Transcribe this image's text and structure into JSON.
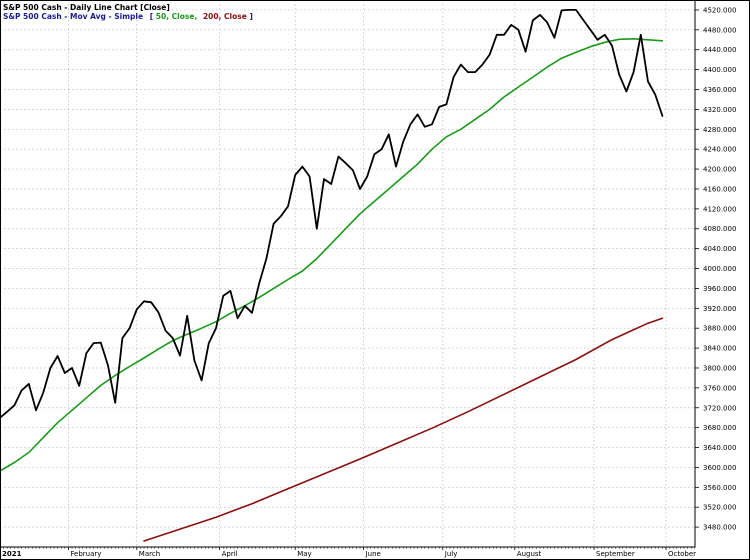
{
  "chart_data": {
    "type": "line",
    "title": "S&P 500 Cash - Daily Line Chart [Close]",
    "subtitle": {
      "prefix": "S&P 500 Cash - Mov Avg - Simple",
      "params_open": "[",
      "param_50": "50, Close,",
      "param_200": "200, Close",
      "params_close": "]"
    },
    "colors": {
      "price": "#000000",
      "ma50": "#1a9a1a",
      "ma200": "#8b0f0f",
      "title": "#000000",
      "subtitle": "#1b1b8f",
      "grid": "#b8b8b8",
      "frame": "#000000"
    },
    "ylim": [
      3440,
      4540
    ],
    "y_ticks": [
      "3480.000",
      "3520.000",
      "3560.000",
      "3600.000",
      "3640.000",
      "3680.000",
      "3720.000",
      "3760.000",
      "3800.000",
      "3840.000",
      "3880.000",
      "3920.000",
      "3960.000",
      "4000.000",
      "4040.000",
      "4080.000",
      "4120.000",
      "4160.000",
      "4200.000",
      "4240.000",
      "4280.000",
      "4320.000",
      "4360.000",
      "4400.000",
      "4440.000",
      "4480.000",
      "4520.000"
    ],
    "x_month_labels": [
      "2021",
      "February",
      "March",
      "April",
      "May",
      "June",
      "July",
      "August",
      "September",
      "October"
    ],
    "x_month_starts": [
      0,
      19,
      38,
      61,
      82,
      101,
      123,
      143,
      165,
      185
    ],
    "x_total_days": 200,
    "series": [
      {
        "name": "S&P 500 Cash",
        "color_key": "price",
        "x": [
          0,
          2,
          4,
          6,
          8,
          10,
          12,
          14,
          16,
          18,
          20,
          22,
          24,
          26,
          28,
          30,
          32,
          34,
          36,
          38,
          40,
          42,
          44,
          46,
          48,
          50,
          52,
          54,
          56,
          58,
          60,
          62,
          64,
          66,
          68,
          70,
          72,
          74,
          76,
          78,
          80,
          82,
          84,
          86,
          88,
          90,
          92,
          94,
          96,
          98,
          100,
          102,
          104,
          106,
          108,
          110,
          112,
          114,
          116,
          118,
          120,
          122,
          124,
          126,
          128,
          130,
          132,
          134,
          136,
          138,
          140,
          142,
          144,
          146,
          148,
          150,
          152,
          154,
          156,
          158,
          160,
          162,
          164,
          166,
          168,
          170,
          172,
          174,
          176,
          178,
          180,
          182,
          184
        ],
        "values": [
          3700,
          3712,
          3725,
          3755,
          3768,
          3715,
          3750,
          3800,
          3824,
          3790,
          3800,
          3764,
          3830,
          3850,
          3851,
          3805,
          3730,
          3860,
          3880,
          3918,
          3934,
          3932,
          3912,
          3875,
          3860,
          3825,
          3905,
          3815,
          3775,
          3850,
          3880,
          3945,
          3955,
          3900,
          3925,
          3911,
          3970,
          4020,
          4090,
          4105,
          4125,
          4188,
          4205,
          4185,
          4080,
          4180,
          4170,
          4225,
          4212,
          4198,
          4160,
          4185,
          4230,
          4240,
          4270,
          4205,
          4255,
          4290,
          4310,
          4285,
          4290,
          4325,
          4330,
          4385,
          4410,
          4395,
          4395,
          4410,
          4430,
          4470,
          4470,
          4490,
          4480,
          4436,
          4499,
          4510,
          4495,
          4464,
          4519,
          4520,
          4520,
          4500,
          4480,
          4460,
          4470,
          4448,
          4390,
          4356,
          4395,
          4470,
          4376,
          4350,
          4307
        ]
      },
      {
        "name": "50-day MA",
        "color_key": "ma50",
        "x": [
          0,
          4,
          8,
          12,
          16,
          20,
          24,
          28,
          32,
          36,
          40,
          44,
          48,
          52,
          56,
          60,
          64,
          68,
          72,
          76,
          80,
          84,
          88,
          92,
          96,
          100,
          104,
          108,
          112,
          116,
          120,
          124,
          128,
          132,
          136,
          140,
          144,
          148,
          152,
          156,
          160,
          164,
          168,
          172,
          176,
          180,
          184
        ],
        "values": [
          3593,
          3610,
          3630,
          3660,
          3690,
          3715,
          3740,
          3765,
          3785,
          3803,
          3820,
          3838,
          3855,
          3868,
          3880,
          3893,
          3910,
          3925,
          3942,
          3960,
          3978,
          3995,
          4020,
          4050,
          4080,
          4110,
          4135,
          4160,
          4185,
          4210,
          4240,
          4265,
          4280,
          4300,
          4320,
          4345,
          4365,
          4385,
          4405,
          4423,
          4435,
          4446,
          4455,
          4461,
          4462,
          4460,
          4458
        ]
      },
      {
        "name": "200-day MA",
        "color_key": "ma200",
        "x": [
          40,
          50,
          60,
          70,
          80,
          90,
          100,
          110,
          120,
          130,
          140,
          150,
          160,
          170,
          180,
          184
        ],
        "values": [
          3452,
          3476,
          3500,
          3527,
          3557,
          3587,
          3617,
          3648,
          3679,
          3712,
          3747,
          3782,
          3817,
          3857,
          3890,
          3900
        ]
      }
    ]
  }
}
